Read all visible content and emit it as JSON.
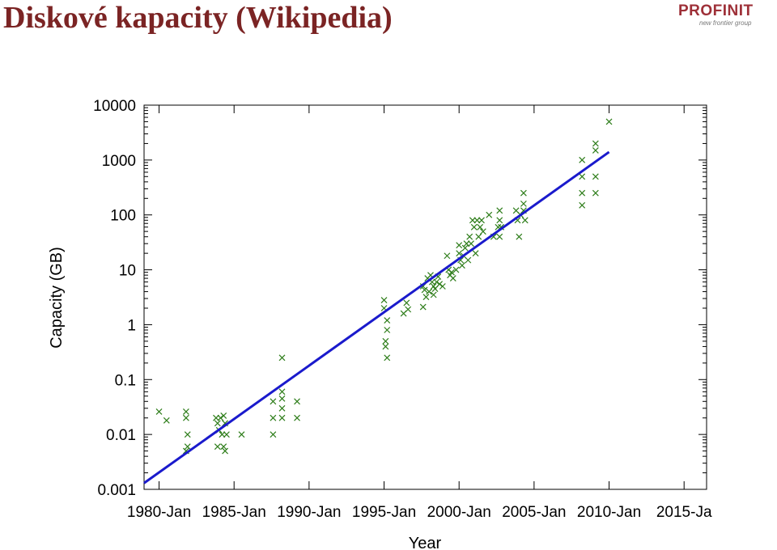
{
  "slide": {
    "title": "Diskové kapacity (Wikipedia)",
    "logo_text": "PROFINIT",
    "logo_tagline": "new frontier group"
  },
  "colors": {
    "title": "#7b2424",
    "points": "#2e7d1a",
    "trend": "#1a1acc",
    "logo": "#9e3038"
  },
  "chart_data": {
    "type": "scatter",
    "xlabel": "Year",
    "ylabel": "Capacity (GB)",
    "y_scale": "log",
    "ylim": [
      0.001,
      10000
    ],
    "xlim": [
      1979.0,
      2016.5
    ],
    "y_ticks": [
      "0.001",
      "0.01",
      "0.1",
      "1",
      "10",
      "100",
      "1000",
      "10000"
    ],
    "x_ticks": [
      {
        "year": 1980,
        "label": "1980-Jan"
      },
      {
        "year": 1985,
        "label": "1985-Jan"
      },
      {
        "year": 1990,
        "label": "1990-Jan"
      },
      {
        "year": 1995,
        "label": "1995-Jan"
      },
      {
        "year": 2000,
        "label": "2000-Jan"
      },
      {
        "year": 2005,
        "label": "2005-Jan"
      },
      {
        "year": 2010,
        "label": "2010-Jan"
      },
      {
        "year": 2015,
        "label": "2015-Ja"
      }
    ],
    "grid": false,
    "trend_line": {
      "start": [
        1979.0,
        0.0013
      ],
      "end": [
        2010.0,
        1400
      ]
    },
    "points": [
      [
        1980.0,
        0.026
      ],
      [
        1980.5,
        0.018
      ],
      [
        1981.8,
        0.026
      ],
      [
        1981.8,
        0.02
      ],
      [
        1981.9,
        0.01
      ],
      [
        1981.8,
        0.005
      ],
      [
        1981.9,
        0.006
      ],
      [
        1983.8,
        0.02
      ],
      [
        1983.9,
        0.016
      ],
      [
        1984.0,
        0.012
      ],
      [
        1984.1,
        0.02
      ],
      [
        1984.2,
        0.01
      ],
      [
        1984.3,
        0.022
      ],
      [
        1984.3,
        0.006
      ],
      [
        1984.4,
        0.005
      ],
      [
        1984.5,
        0.01
      ],
      [
        1984.4,
        0.016
      ],
      [
        1983.9,
        0.006
      ],
      [
        1985.5,
        0.01
      ],
      [
        1987.6,
        0.04
      ],
      [
        1987.6,
        0.02
      ],
      [
        1987.6,
        0.01
      ],
      [
        1988.2,
        0.25
      ],
      [
        1988.2,
        0.06
      ],
      [
        1988.2,
        0.045
      ],
      [
        1988.2,
        0.03
      ],
      [
        1988.2,
        0.02
      ],
      [
        1989.2,
        0.04
      ],
      [
        1989.2,
        0.02
      ],
      [
        1995.0,
        2.8
      ],
      [
        1995.0,
        2.0
      ],
      [
        1995.2,
        1.2
      ],
      [
        1995.2,
        0.8
      ],
      [
        1995.1,
        0.5
      ],
      [
        1995.1,
        0.4
      ],
      [
        1995.2,
        0.25
      ],
      [
        1996.5,
        2.5
      ],
      [
        1996.6,
        1.9
      ],
      [
        1996.3,
        1.6
      ],
      [
        1997.6,
        5.0
      ],
      [
        1997.7,
        4.3
      ],
      [
        1997.8,
        3.2
      ],
      [
        1997.6,
        2.1
      ],
      [
        1997.9,
        7.0
      ],
      [
        1998.1,
        8.0
      ],
      [
        1998.2,
        6.0
      ],
      [
        1998.3,
        5.0
      ],
      [
        1998.4,
        4.5
      ],
      [
        1998.3,
        3.5
      ],
      [
        1998.5,
        6.0
      ],
      [
        1998.6,
        7.5
      ],
      [
        1998.7,
        5.5
      ],
      [
        1998.0,
        4.0
      ],
      [
        1998.9,
        5.0
      ],
      [
        1999.3,
        10.0
      ],
      [
        1999.4,
        8.0
      ],
      [
        1999.5,
        9.0
      ],
      [
        1999.6,
        7.0
      ],
      [
        1999.2,
        18.0
      ],
      [
        1999.8,
        10.0
      ],
      [
        2000.0,
        20.0
      ],
      [
        2000.1,
        15.0
      ],
      [
        2000.2,
        12.0
      ],
      [
        2000.3,
        18.0
      ],
      [
        2000.0,
        28.0
      ],
      [
        2000.4,
        25.0
      ],
      [
        2000.5,
        30.0
      ],
      [
        2000.6,
        15.0
      ],
      [
        2000.7,
        40.0
      ],
      [
        2000.8,
        30.0
      ],
      [
        2000.9,
        80.0
      ],
      [
        2001.0,
        60.0
      ],
      [
        2001.2,
        80.0
      ],
      [
        2001.3,
        40.0
      ],
      [
        2001.4,
        60.0
      ],
      [
        2001.5,
        80.0
      ],
      [
        2001.1,
        20.0
      ],
      [
        2001.6,
        50.0
      ],
      [
        2002.0,
        100.0
      ],
      [
        2002.3,
        40.0
      ],
      [
        2002.6,
        60.0
      ],
      [
        2002.7,
        120.0
      ],
      [
        2002.7,
        80.0
      ],
      [
        2002.7,
        40.0
      ],
      [
        2002.8,
        60.0
      ],
      [
        2003.8,
        120.0
      ],
      [
        2003.9,
        80.0
      ],
      [
        2004.0,
        40.0
      ],
      [
        2004.1,
        100.0
      ],
      [
        2004.3,
        250.0
      ],
      [
        2004.3,
        160.0
      ],
      [
        2004.3,
        120.0
      ],
      [
        2004.4,
        80.0
      ],
      [
        2008.2,
        1000.0
      ],
      [
        2008.2,
        500.0
      ],
      [
        2008.2,
        250.0
      ],
      [
        2008.2,
        150.0
      ],
      [
        2009.1,
        2000.0
      ],
      [
        2009.1,
        1500.0
      ],
      [
        2009.1,
        500.0
      ],
      [
        2009.1,
        250.0
      ],
      [
        2010.0,
        5000.0
      ]
    ]
  }
}
